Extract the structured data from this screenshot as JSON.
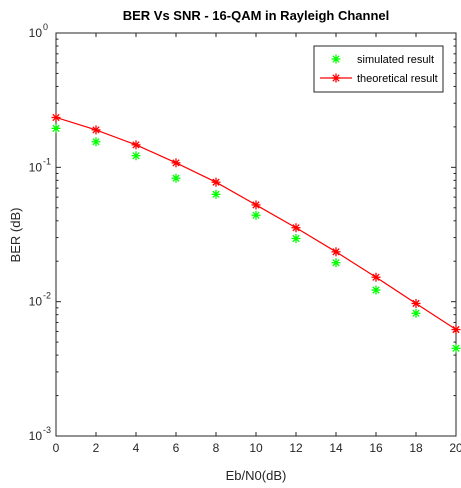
{
  "chart_data": {
    "type": "scatter",
    "title": "BER Vs SNR - 16-QAM in  Rayleigh Channel",
    "xlabel": "Eb/N0(dB)",
    "ylabel": "BER (dB)",
    "x": [
      0,
      2,
      4,
      6,
      8,
      10,
      12,
      14,
      16,
      18,
      20
    ],
    "xlim": [
      0,
      20
    ],
    "ylim": [
      0.001,
      1
    ],
    "yscale": "log",
    "x_tick_labels": [
      "0",
      "2",
      "4",
      "6",
      "8",
      "10",
      "12",
      "14",
      "16",
      "18",
      "20"
    ],
    "y_ticks": [
      {
        "base": "10",
        "exp": "0"
      },
      {
        "base": "10",
        "exp": "-1"
      },
      {
        "base": "10",
        "exp": "-2"
      },
      {
        "base": "10",
        "exp": "-3"
      }
    ],
    "grid": false,
    "legend_position": "top-right",
    "series": [
      {
        "name": "simulated result",
        "style": "markers",
        "color": "#00ff00",
        "values": [
          0.195,
          0.155,
          0.122,
          0.083,
          0.063,
          0.044,
          0.0295,
          0.0195,
          0.0122,
          0.0082,
          0.0045
        ]
      },
      {
        "name": "theoretical result",
        "style": "line-markers",
        "color": "#ff0000",
        "values": [
          0.235,
          0.19,
          0.147,
          0.108,
          0.0775,
          0.0525,
          0.0355,
          0.0235,
          0.0152,
          0.0097,
          0.0062
        ]
      }
    ]
  }
}
